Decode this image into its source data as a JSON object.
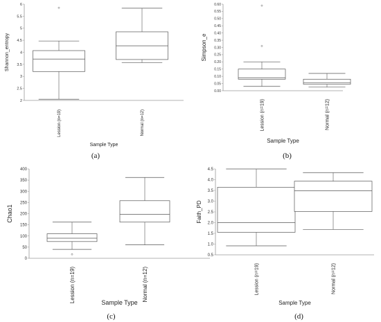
{
  "chart_data": [
    {
      "type": "box",
      "panel_label": "(a)",
      "ylabel": "Shannon_entropy",
      "xlabel": "Sample Type",
      "categories": [
        "Lession (n=19)",
        "Normal (n=12)"
      ],
      "ylim": [
        2,
        6
      ],
      "yticks": [
        2,
        2.5,
        3,
        3.5,
        4,
        4.5,
        5,
        5.5,
        6
      ],
      "ytick_labels": [
        "2",
        "2.5",
        "3",
        "3.5",
        "4",
        "4.5",
        "5",
        "5.5",
        "6"
      ],
      "boxes": [
        {
          "min": 2.05,
          "q1": 3.2,
          "median": 3.72,
          "q3": 4.07,
          "max": 4.47,
          "outliers": [
            5.85
          ]
        },
        {
          "min": 3.57,
          "q1": 3.7,
          "median": 4.27,
          "q3": 4.85,
          "max": 5.83,
          "outliers": []
        }
      ]
    },
    {
      "type": "box",
      "panel_label": "(b)",
      "ylabel": "Simpson_e",
      "xlabel": "Sample Type",
      "categories": [
        "Lession (n=19)",
        "Normal (n=12)"
      ],
      "ylim": [
        0,
        0.6
      ],
      "yticks": [
        0,
        0.05,
        0.1,
        0.15,
        0.2,
        0.25,
        0.3,
        0.35,
        0.4,
        0.45,
        0.5,
        0.55,
        0.6
      ],
      "ytick_labels": [
        "0.00",
        "0.05",
        "0.10",
        "0.15",
        "0.20",
        "0.25",
        "0.30",
        "0.35",
        "0.40",
        "0.45",
        "0.50",
        "0.55",
        "0.60"
      ],
      "boxes": [
        {
          "min": 0.03,
          "q1": 0.08,
          "median": 0.09,
          "q3": 0.15,
          "max": 0.2,
          "outliers": [
            0.31,
            0.59
          ]
        },
        {
          "min": 0.025,
          "q1": 0.045,
          "median": 0.055,
          "q3": 0.08,
          "max": 0.12,
          "outliers": []
        }
      ]
    },
    {
      "type": "box",
      "panel_label": "(c)",
      "ylabel": "Chao1",
      "xlabel": "Sample Type",
      "categories": [
        "Lession (n=19)",
        "Normal (n=12)"
      ],
      "ylim": [
        0,
        400
      ],
      "yticks": [
        0,
        50,
        100,
        150,
        200,
        250,
        300,
        350,
        400
      ],
      "ytick_labels": [
        "0",
        "50",
        "100",
        "150",
        "200",
        "250",
        "300",
        "350",
        "400"
      ],
      "boxes": [
        {
          "min": 40,
          "q1": 75,
          "median": 90,
          "q3": 110,
          "max": 162,
          "outliers": [
            18
          ]
        },
        {
          "min": 60,
          "q1": 162,
          "median": 197,
          "q3": 258,
          "max": 362,
          "outliers": []
        }
      ]
    },
    {
      "type": "box",
      "panel_label": "(d)",
      "ylabel": "Faith_PD",
      "xlabel": "Sample Type",
      "categories": [
        "Lession (n=19)",
        "Normal (n=12)"
      ],
      "ylim": [
        0.5,
        4.5
      ],
      "yticks": [
        0.5,
        1.0,
        1.5,
        2.0,
        2.5,
        3.0,
        3.5,
        4.0,
        4.5
      ],
      "ytick_labels": [
        "0.5",
        "1.0",
        "1.5",
        "2.0",
        "2.5",
        "3.0",
        "3.5",
        "4.0",
        "4.5"
      ],
      "boxes": [
        {
          "min": 0.92,
          "q1": 1.55,
          "median": 2.0,
          "q3": 3.65,
          "max": 4.5,
          "outliers": []
        },
        {
          "min": 1.68,
          "q1": 2.52,
          "median": 3.48,
          "q3": 3.93,
          "max": 4.33,
          "outliers": []
        }
      ]
    }
  ]
}
